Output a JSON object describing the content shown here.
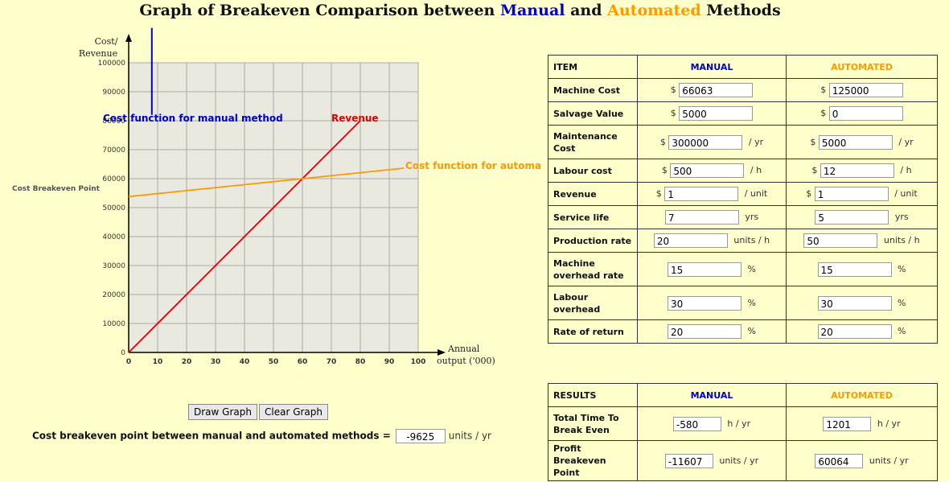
{
  "title": {
    "prefix": "Graph of Breakeven Comparison between ",
    "manual": "Manual",
    "mid": " and ",
    "automated": "Automated",
    "suffix": " Methods"
  },
  "chart_data": {
    "type": "line",
    "ylabel_line1": "Cost/",
    "ylabel_line2": "Revenue",
    "xlabel_line1": "Annual",
    "xlabel_line2": "output ('000)",
    "xlim": [
      0,
      100
    ],
    "ylim": [
      0,
      100000
    ],
    "x_ticks": [
      0,
      10,
      20,
      30,
      40,
      50,
      60,
      70,
      80,
      90,
      100
    ],
    "y_ticks": [
      0,
      10000,
      20000,
      30000,
      40000,
      50000,
      60000,
      70000,
      80000,
      90000,
      100000
    ],
    "grid": true,
    "series": [
      {
        "name": "Revenue",
        "color": "#dd0000",
        "x": [
          0,
          80
        ],
        "y": [
          0,
          80000
        ]
      },
      {
        "name": "Cost function for automa",
        "color": "#ff9900",
        "x": [
          0,
          95
        ],
        "y": [
          53800,
          63600
        ]
      },
      {
        "name": "Cost function for manual method",
        "color": "#0000cc",
        "x": [
          8,
          8
        ],
        "y": [
          82000,
          112000
        ]
      }
    ],
    "annotation": "Cost Breakeven Point"
  },
  "buttons": {
    "draw": "Draw Graph",
    "clear": "Clear Graph"
  },
  "breakeven": {
    "label": "Cost breakeven point between manual and automated methods =",
    "value": "-9625",
    "unit": "units / yr"
  },
  "inputs": {
    "header": {
      "item": "ITEM",
      "manual": "MANUAL",
      "automated": "AUTOMATED"
    },
    "rows": [
      {
        "label": "Machine Cost",
        "manual": {
          "pre": "$",
          "value": "66063",
          "post": ""
        },
        "automated": {
          "pre": "$",
          "value": "125000",
          "post": ""
        }
      },
      {
        "label": "Salvage Value",
        "manual": {
          "pre": "$",
          "value": "5000",
          "post": ""
        },
        "automated": {
          "pre": "$",
          "value": "0",
          "post": ""
        }
      },
      {
        "label": "Maintenance Cost",
        "manual": {
          "pre": "$",
          "value": "300000",
          "post": "/ yr"
        },
        "automated": {
          "pre": "$",
          "value": "5000",
          "post": "/ yr"
        }
      },
      {
        "label": "Labour cost",
        "manual": {
          "pre": "$",
          "value": "500",
          "post": "/ h"
        },
        "automated": {
          "pre": "$",
          "value": "12",
          "post": "/ h"
        }
      },
      {
        "label": "Revenue",
        "manual": {
          "pre": "$",
          "value": "1",
          "post": "/ unit"
        },
        "automated": {
          "pre": "$",
          "value": "1",
          "post": "/ unit"
        }
      },
      {
        "label": "Service life",
        "manual": {
          "pre": "",
          "value": "7",
          "post": "yrs"
        },
        "automated": {
          "pre": "",
          "value": "5",
          "post": "yrs"
        }
      },
      {
        "label": "Production rate",
        "manual": {
          "pre": "",
          "value": "20",
          "post": "units / h"
        },
        "automated": {
          "pre": "",
          "value": "50",
          "post": "units / h"
        }
      },
      {
        "label": "Machine overhead rate",
        "manual": {
          "pre": "",
          "value": "15",
          "post": "%"
        },
        "automated": {
          "pre": "",
          "value": "15",
          "post": "%"
        }
      },
      {
        "label": "Labour overhead",
        "manual": {
          "pre": "",
          "value": "30",
          "post": "%"
        },
        "automated": {
          "pre": "",
          "value": "30",
          "post": "%"
        }
      },
      {
        "label": "Rate of return",
        "manual": {
          "pre": "",
          "value": "20",
          "post": "%"
        },
        "automated": {
          "pre": "",
          "value": "20",
          "post": "%"
        }
      }
    ]
  },
  "results": {
    "header": {
      "item": "RESULTS",
      "manual": "MANUAL",
      "automated": "AUTOMATED"
    },
    "rows": [
      {
        "label": "Total Time To Break Even",
        "manual": {
          "value": "-580",
          "post": "h / yr"
        },
        "automated": {
          "value": "1201",
          "post": "h / yr"
        }
      },
      {
        "label": "Profit Breakeven Point",
        "manual": {
          "value": "-11607",
          "post": "units / yr"
        },
        "automated": {
          "value": "60064",
          "post": "units / yr"
        }
      }
    ]
  }
}
